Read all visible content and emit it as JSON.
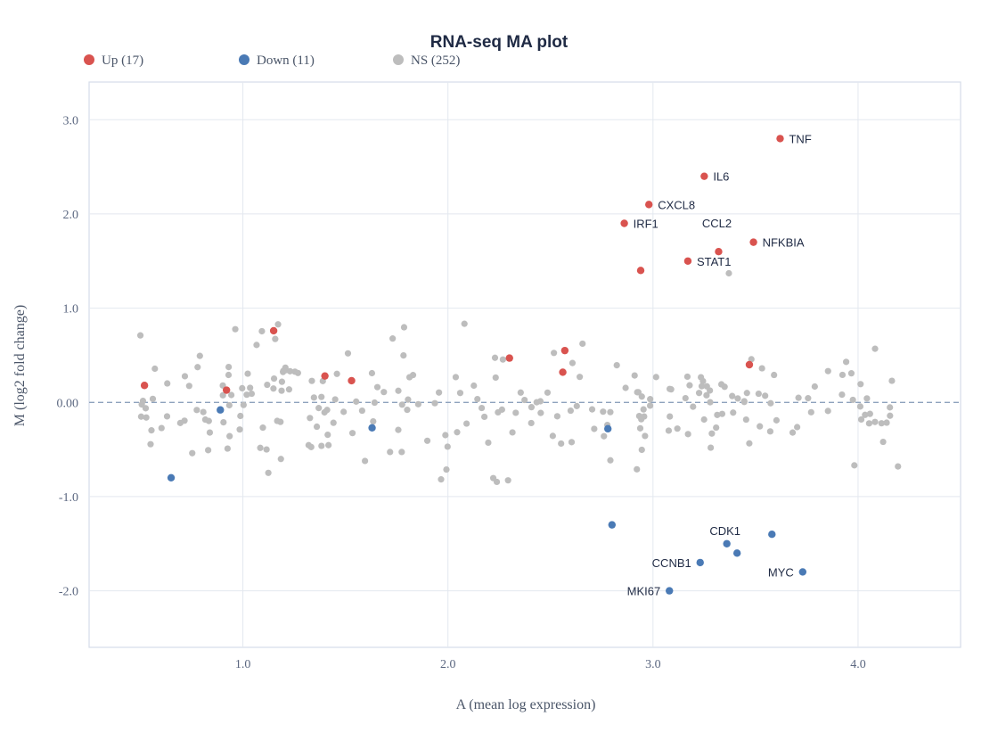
{
  "chart_data": {
    "type": "scatter",
    "title": "RNA-seq MA plot",
    "xlabel": "A (mean log expression)",
    "ylabel": "M (log2 fold change)",
    "xlim": [
      0.25,
      4.5
    ],
    "ylim": [
      -2.6,
      3.4
    ],
    "xticks": [
      1.0,
      2.0,
      3.0,
      4.0
    ],
    "xtick_labels": [
      "1.0",
      "2.0",
      "3.0",
      "4.0"
    ],
    "yticks": [
      -2.0,
      -1.0,
      0.0,
      1.0,
      2.0,
      3.0
    ],
    "ytick_labels": [
      "-2.0",
      "-1.0",
      "0.00",
      "1.0",
      "2.0",
      "3.0"
    ],
    "reference_line_y": 0,
    "grid": true,
    "legend_position": "top-left",
    "series": [
      {
        "name": "Up (17)",
        "color": "#d9534f",
        "points": [
          [
            3.62,
            2.8
          ],
          [
            3.25,
            2.4
          ],
          [
            2.98,
            2.1
          ],
          [
            2.86,
            1.9
          ],
          [
            3.49,
            1.7
          ],
          [
            3.32,
            1.6
          ],
          [
            3.17,
            1.5
          ],
          [
            2.94,
            1.4
          ],
          [
            0.52,
            0.18
          ],
          [
            0.92,
            0.13
          ],
          [
            1.15,
            0.76
          ],
          [
            1.4,
            0.28
          ],
          [
            1.53,
            0.23
          ],
          [
            2.3,
            0.47
          ],
          [
            2.57,
            0.55
          ],
          [
            2.56,
            0.32
          ],
          [
            3.47,
            0.4
          ]
        ]
      },
      {
        "name": "Down (11)",
        "color": "#4a7ab5",
        "points": [
          [
            3.08,
            -2.0
          ],
          [
            3.23,
            -1.7
          ],
          [
            3.73,
            -1.8
          ],
          [
            3.41,
            -1.6
          ],
          [
            3.36,
            -1.5
          ],
          [
            3.58,
            -1.4
          ],
          [
            2.8,
            -1.3
          ],
          [
            0.65,
            -0.8
          ],
          [
            0.89,
            -0.08
          ],
          [
            1.63,
            -0.27
          ],
          [
            2.78,
            -0.28
          ]
        ]
      },
      {
        "name": "NS (252)",
        "color": "#bdbdbd",
        "points": []
      }
    ],
    "labeled_points": [
      {
        "label": "TNF",
        "x": 3.62,
        "y": 2.8,
        "side": "right"
      },
      {
        "label": "IL6",
        "x": 3.25,
        "y": 2.4,
        "side": "right"
      },
      {
        "label": "CXCL8",
        "x": 2.98,
        "y": 2.1,
        "side": "right"
      },
      {
        "label": "IRF1",
        "x": 2.86,
        "y": 1.9,
        "side": "right"
      },
      {
        "label": "CCL2",
        "x": 3.32,
        "y": 1.6,
        "side": "above"
      },
      {
        "label": "NFKBIA",
        "x": 3.49,
        "y": 1.7,
        "side": "right"
      },
      {
        "label": "STAT1",
        "x": 3.17,
        "y": 1.5,
        "side": "right"
      },
      {
        "label": "CDK1",
        "x": 3.36,
        "y": -1.5,
        "side": "above"
      },
      {
        "label": "CCNB1",
        "x": 3.23,
        "y": -1.7,
        "side": "left"
      },
      {
        "label": "MYC",
        "x": 3.73,
        "y": -1.8,
        "side": "left"
      },
      {
        "label": "MKI67",
        "x": 3.08,
        "y": -2.0,
        "side": "left"
      }
    ]
  }
}
